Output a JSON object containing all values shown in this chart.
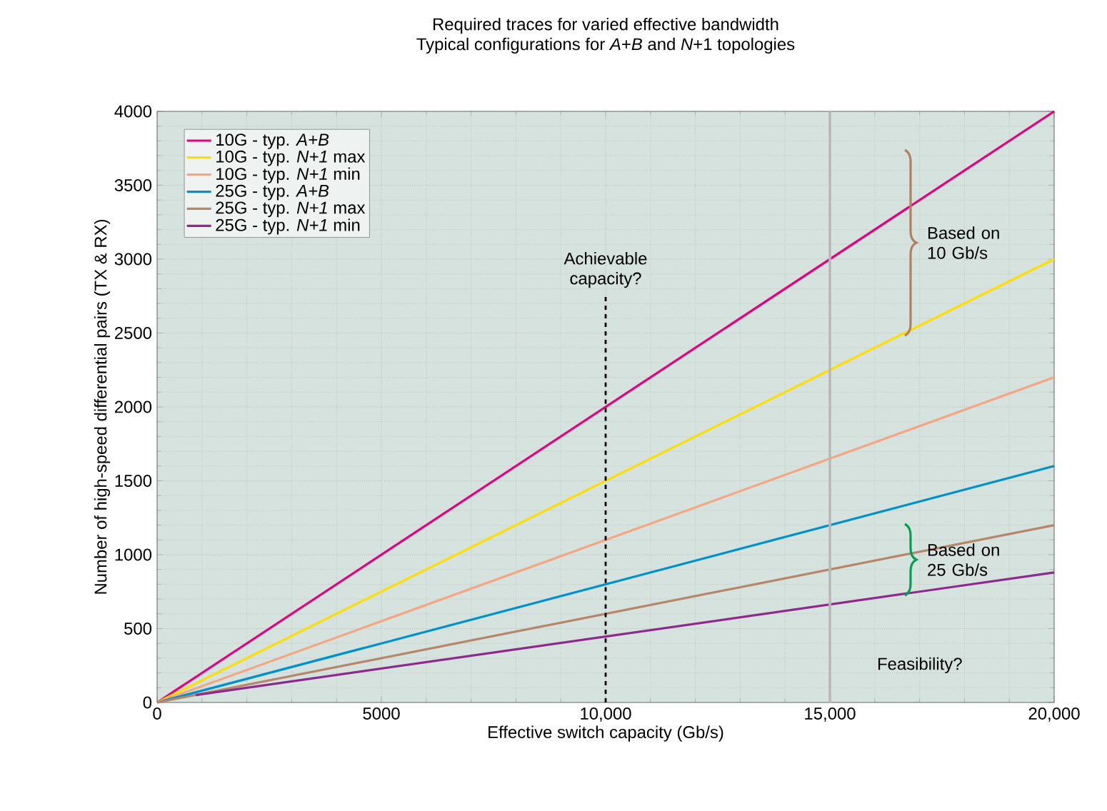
{
  "chart_data": {
    "type": "line",
    "title": "Required traces for varied effective bandwidth",
    "subtitle": "Typical configurations for *A*+*B* and *N*+1 topologies",
    "xlabel": "Effective switch capacity (Gb/s)",
    "ylabel": "Number of high-speed differential pairs (TX & RX)",
    "xlim": [
      0,
      20000
    ],
    "ylim": [
      0,
      4000
    ],
    "xticks": [
      0,
      5000,
      {
        "value": 10000,
        "label": "10,000"
      },
      {
        "value": 15000,
        "label": "15,000"
      },
      {
        "value": 20000,
        "label": "20,000"
      }
    ],
    "yticks": [
      0,
      500,
      1000,
      1500,
      2000,
      2500,
      3000,
      3500,
      4000
    ],
    "grid": true,
    "legend": "top left",
    "marker": "none",
    "line_style": "solid",
    "series": [
      {
        "name": "10G - typ. *A+B*",
        "color": "#e6007e",
        "x": [
          0,
          20000
        ],
        "values": [
          0,
          4000
        ]
      },
      {
        "name": "10G - typ. *N+1* max",
        "color": "#ffdd00",
        "x": [
          0,
          20000
        ],
        "values": [
          0,
          3000
        ]
      },
      {
        "name": "10G - typ. *N+1* min",
        "color": "#f4a582",
        "x": [
          0,
          20000
        ],
        "values": [
          0,
          2200
        ]
      },
      {
        "name": "25G - typ. *A+B*",
        "color": "#0090d0",
        "x": [
          0,
          20000
        ],
        "values": [
          0,
          1600
        ]
      },
      {
        "name": "25G - typ. *N+1* max",
        "color": "#b5866a",
        "x": [
          0,
          20000
        ],
        "values": [
          0,
          1200
        ]
      },
      {
        "name": "25G - typ. *N+1* min",
        "color": "#8e2a8e",
        "x": [
          860,
          20000
        ],
        "values": [
          50,
          880
        ]
      }
    ],
    "ref_lines": [
      {
        "axis": "x",
        "value": 10000,
        "label": "Achievable capacity?",
        "color": "#000000",
        "line_style": "dashed"
      },
      {
        "axis": "x",
        "value": 15000,
        "color": "#b8b8b8",
        "line_style": "solid"
      }
    ],
    "annotations": [
      "Based on 10 Gb/s",
      "Based on 25 Gb/s",
      "Feasibility?"
    ]
  }
}
